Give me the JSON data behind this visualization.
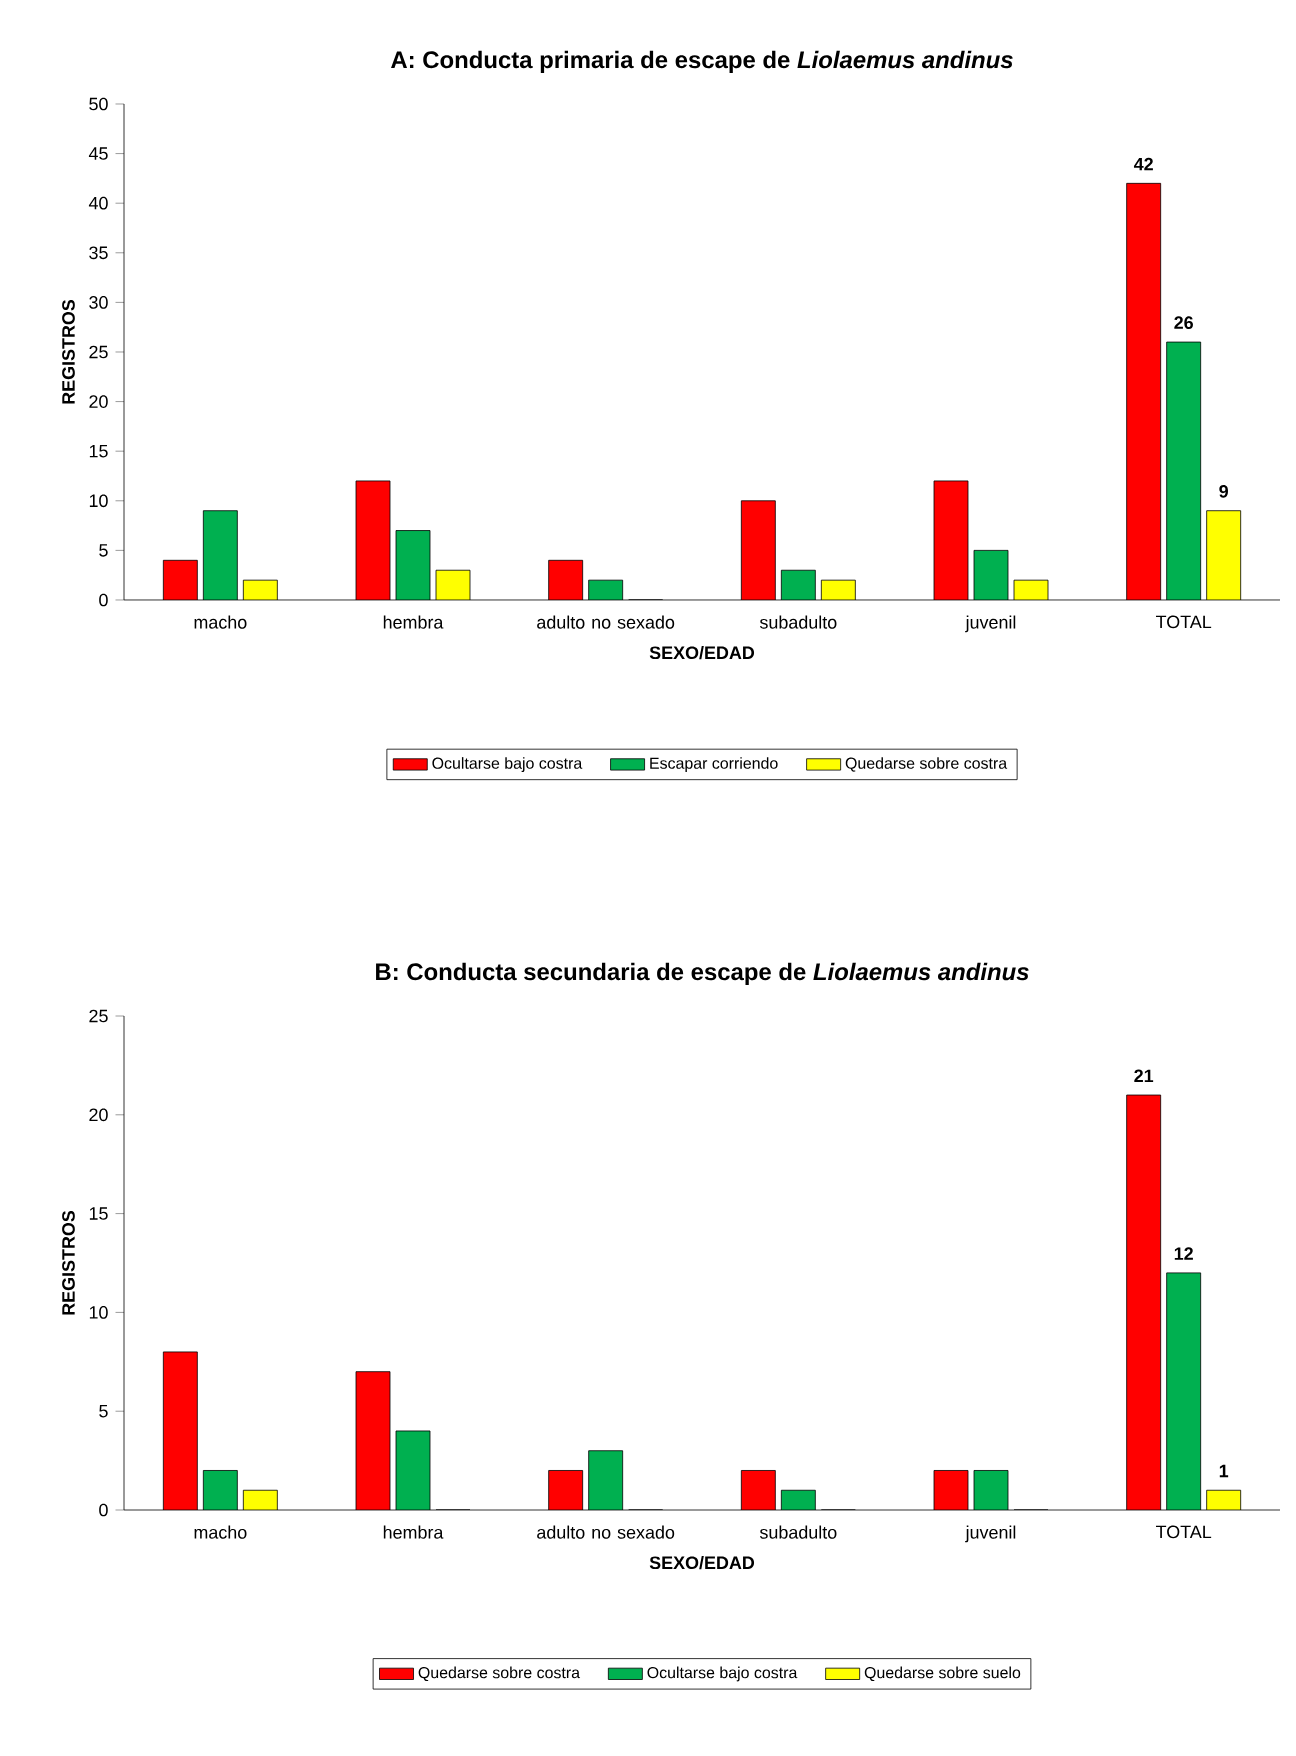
{
  "chart_data": [
    {
      "type": "bar",
      "title": "A: Conducta primaria de escape de *Liolaemus andinus*",
      "xlabel": "SEXO/EDAD",
      "ylabel": "REGISTROS",
      "categories": [
        "macho",
        "hembra",
        "adulto no sexado",
        "subadulto",
        "juvenil",
        "TOTAL"
      ],
      "ylim": [
        0,
        50
      ],
      "yticks": [
        0,
        5,
        10,
        15,
        20,
        25,
        30,
        35,
        40,
        45,
        50
      ],
      "legend": "bottom",
      "series": [
        {
          "name": "Ocultarse bajo costra",
          "color": "#ff0000",
          "values": [
            4,
            12,
            4,
            10,
            12,
            42
          ],
          "value_labels": [
            null,
            null,
            null,
            null,
            null,
            "42"
          ]
        },
        {
          "name": "Escapar corriendo",
          "color": "#00b050",
          "values": [
            9,
            7,
            2,
            3,
            5,
            26
          ],
          "value_labels": [
            null,
            null,
            null,
            null,
            null,
            "26"
          ]
        },
        {
          "name": "Quedarse sobre costra",
          "color": "#ffff00",
          "values": [
            2,
            3,
            0,
            2,
            2,
            9
          ],
          "value_labels": [
            null,
            null,
            null,
            null,
            null,
            "9"
          ]
        }
      ]
    },
    {
      "type": "bar",
      "title": "B: Conducta secundaria de escape de *Liolaemus andinus*",
      "xlabel": "SEXO/EDAD",
      "ylabel": "REGISTROS",
      "categories": [
        "macho",
        "hembra",
        "adulto no sexado",
        "subadulto",
        "juvenil",
        "TOTAL"
      ],
      "ylim": [
        0,
        25
      ],
      "yticks": [
        0,
        5,
        10,
        15,
        20,
        25
      ],
      "legend": "bottom",
      "series": [
        {
          "name": "Quedarse sobre costra",
          "color": "#ff0000",
          "values": [
            8,
            7,
            2,
            2,
            2,
            21
          ],
          "value_labels": [
            null,
            null,
            null,
            null,
            null,
            "21"
          ]
        },
        {
          "name": "Ocultarse bajo costra",
          "color": "#00b050",
          "values": [
            2,
            4,
            3,
            1,
            2,
            12
          ],
          "value_labels": [
            null,
            null,
            null,
            null,
            null,
            "12"
          ]
        },
        {
          "name": "Quedarse sobre suelo",
          "color": "#ffff00",
          "values": [
            1,
            0,
            0,
            0,
            0,
            1
          ],
          "value_labels": [
            null,
            null,
            null,
            null,
            null,
            "1"
          ]
        }
      ]
    }
  ]
}
